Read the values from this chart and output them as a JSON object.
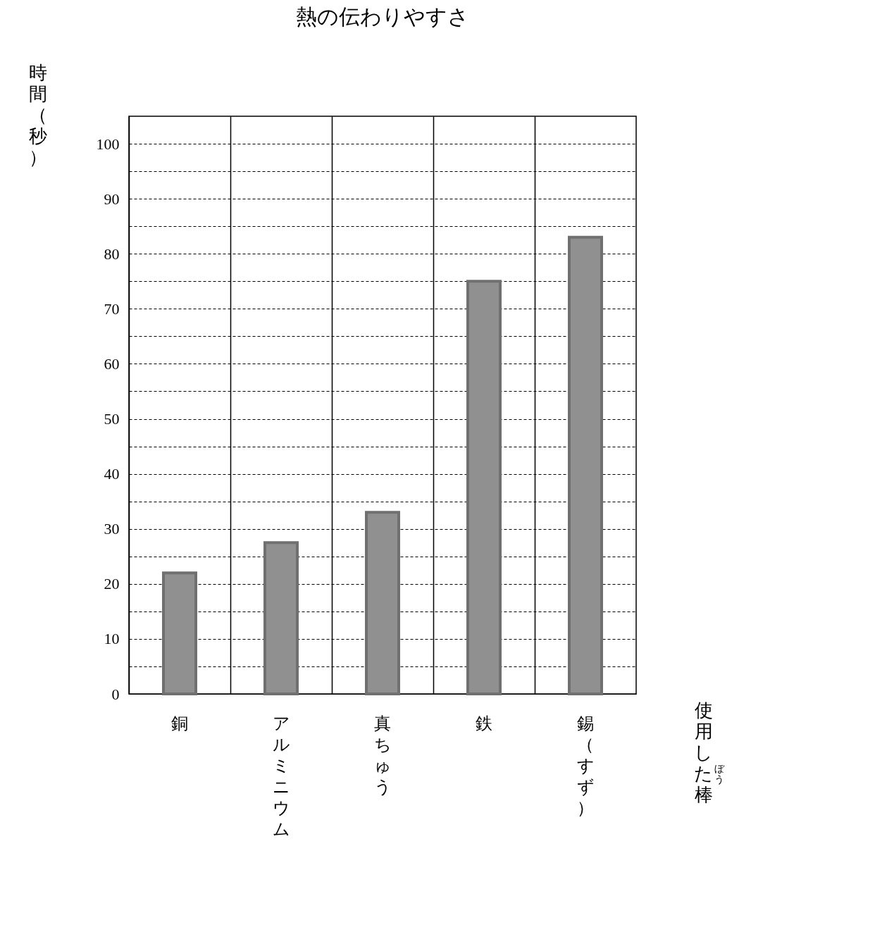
{
  "chart_data": {
    "type": "bar",
    "title": "熱の伝わりやすさ",
    "ylabel": "時間（秒）",
    "xlabel": "使用した棒",
    "annotations": [
      "ぼう"
    ],
    "categories": [
      "銅",
      "アルミニウム",
      "真ちゅう",
      "鉄",
      "錫（すず）"
    ],
    "values": [
      22,
      27.5,
      33,
      75,
      83
    ],
    "color": "#909090",
    "ylim": [
      0,
      105
    ],
    "yticks": [
      0,
      {
        "value": 5,
        "label": null
      },
      10,
      {
        "value": 15,
        "label": null
      },
      20,
      {
        "value": 25,
        "label": null
      },
      30,
      {
        "value": 35,
        "label": null
      },
      40,
      {
        "value": 45,
        "label": null
      },
      50,
      {
        "value": 55,
        "label": null
      },
      60,
      {
        "value": 65,
        "label": null
      },
      70,
      {
        "value": 75,
        "label": null
      },
      80,
      {
        "value": 85,
        "label": null
      },
      90,
      {
        "value": 95,
        "label": null
      },
      100
    ],
    "grid": true
  }
}
